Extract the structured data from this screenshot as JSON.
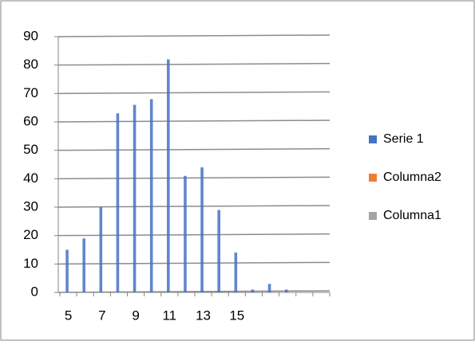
{
  "chart_data": {
    "type": "bar",
    "categories": [
      "5",
      null,
      "7",
      null,
      "9",
      null,
      "11",
      null,
      "13",
      null,
      "15",
      null,
      null,
      null,
      null,
      null
    ],
    "series": [
      {
        "name": "Serie 1",
        "color": "#4472c4",
        "values": [
          15,
          19,
          30,
          63,
          66,
          68,
          82,
          41,
          44,
          29,
          14,
          1,
          3,
          1,
          0,
          0
        ]
      },
      {
        "name": "Columna2",
        "color": "#ed7d31",
        "values": [
          0,
          0,
          0,
          0,
          0,
          0,
          0,
          0,
          0,
          0,
          0,
          0,
          0,
          0,
          0,
          0
        ]
      },
      {
        "name": "Columna1",
        "color": "#a5a5a5",
        "values": [
          0,
          0,
          0,
          0,
          0,
          0,
          0,
          0,
          0,
          0,
          0,
          0,
          0,
          0,
          0,
          0
        ]
      }
    ],
    "ylim": [
      0,
      90
    ],
    "yticks": [
      0,
      10,
      20,
      30,
      40,
      50,
      60,
      70,
      80,
      90
    ],
    "grid": true,
    "legend": "right"
  }
}
